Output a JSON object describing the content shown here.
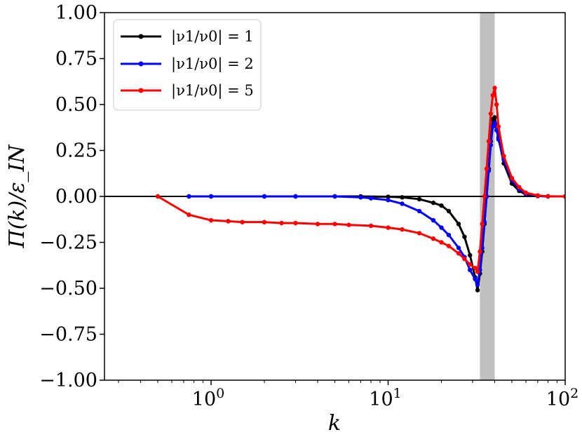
{
  "chart_data": {
    "type": "line",
    "title": "",
    "xlabel": "k",
    "ylabel": "Π(k)/ε_IN",
    "xscale": "log",
    "xlim": [
      0.25,
      100
    ],
    "ylim": [
      -1.0,
      1.0
    ],
    "x_ticks": [
      {
        "value": 1,
        "base": "10",
        "exp": "0"
      },
      {
        "value": 10,
        "base": "10",
        "exp": "1"
      },
      {
        "value": 100,
        "base": "10",
        "exp": "2"
      }
    ],
    "y_ticks": [
      "−1.00",
      "−0.75",
      "−0.50",
      "−0.25",
      "0.00",
      "0.25",
      "0.50",
      "0.75",
      "1.00"
    ],
    "y_tick_values": [
      -1.0,
      -0.75,
      -0.5,
      -0.25,
      0.0,
      0.25,
      0.5,
      0.75,
      1.0
    ],
    "shaded_band": {
      "x": [
        33,
        40
      ],
      "color": "#c0c0c0"
    },
    "reference_line": {
      "y": 0,
      "color": "#000000"
    },
    "legend": {
      "position": "top-left"
    },
    "series": [
      {
        "name": "|ν1/ν0| = 1",
        "color": "#000000",
        "x": [
          0.75,
          1.0,
          2.0,
          3.0,
          5.0,
          7.0,
          10.0,
          12.0,
          15.0,
          18.0,
          20.0,
          22.0,
          25.0,
          27.0,
          29.0,
          31.0,
          32.0,
          33.0,
          34.0,
          35.0,
          36.0,
          37.0,
          38.0,
          39.0,
          40.0,
          41.0,
          42.0,
          45.0,
          50.0,
          55.0,
          60.0,
          70.0,
          80.0,
          100.0
        ],
        "y": [
          0.0,
          0.0,
          0.0,
          0.0,
          0.0,
          0.0,
          -0.002,
          -0.005,
          -0.015,
          -0.035,
          -0.05,
          -0.08,
          -0.15,
          -0.22,
          -0.32,
          -0.44,
          -0.51,
          -0.42,
          -0.3,
          -0.15,
          0.0,
          0.15,
          0.3,
          0.42,
          0.43,
          0.38,
          0.32,
          0.18,
          0.07,
          0.03,
          0.01,
          0.002,
          0.0,
          0.0
        ]
      },
      {
        "name": "|ν1/ν0| = 2",
        "color": "#0000ff",
        "x": [
          0.75,
          1.0,
          2.0,
          3.0,
          5.0,
          7.0,
          8.0,
          10.0,
          12.0,
          15.0,
          18.0,
          20.0,
          22.0,
          25.0,
          27.0,
          29.0,
          31.0,
          32.0,
          33.0,
          34.0,
          35.0,
          36.0,
          37.0,
          38.0,
          39.0,
          40.0,
          41.0,
          42.0,
          45.0,
          50.0,
          55.0,
          60.0,
          70.0,
          80.0,
          100.0
        ],
        "y": [
          0.0,
          0.0,
          0.0,
          0.0,
          0.0,
          -0.005,
          -0.01,
          -0.02,
          -0.04,
          -0.08,
          -0.13,
          -0.17,
          -0.21,
          -0.28,
          -0.33,
          -0.4,
          -0.45,
          -0.48,
          -0.4,
          -0.28,
          -0.14,
          0.0,
          0.14,
          0.28,
          0.38,
          0.4,
          0.36,
          0.31,
          0.2,
          0.09,
          0.04,
          0.015,
          0.003,
          0.0,
          0.0
        ]
      },
      {
        "name": "|ν1/ν0| = 5",
        "color": "#ff0000",
        "x": [
          0.5,
          0.75,
          1.0,
          1.25,
          1.5,
          2.0,
          2.5,
          3.0,
          4.0,
          5.0,
          6.0,
          8.0,
          10.0,
          12.0,
          15.0,
          18.0,
          20.0,
          22.0,
          25.0,
          27.0,
          29.0,
          31.0,
          32.0,
          33.0,
          34.0,
          35.0,
          36.0,
          37.0,
          38.0,
          39.0,
          40.0,
          41.0,
          42.0,
          45.0,
          50.0,
          55.0,
          60.0,
          70.0,
          80.0,
          100.0
        ],
        "y": [
          0.0,
          -0.1,
          -0.13,
          -0.135,
          -0.14,
          -0.14,
          -0.145,
          -0.145,
          -0.15,
          -0.15,
          -0.155,
          -0.16,
          -0.17,
          -0.18,
          -0.2,
          -0.23,
          -0.25,
          -0.27,
          -0.31,
          -0.34,
          -0.37,
          -0.39,
          -0.41,
          -0.3,
          -0.15,
          0.0,
          0.15,
          0.3,
          0.45,
          0.55,
          0.59,
          0.5,
          0.38,
          0.22,
          0.1,
          0.05,
          0.02,
          0.005,
          0.001,
          0.0
        ]
      }
    ]
  }
}
